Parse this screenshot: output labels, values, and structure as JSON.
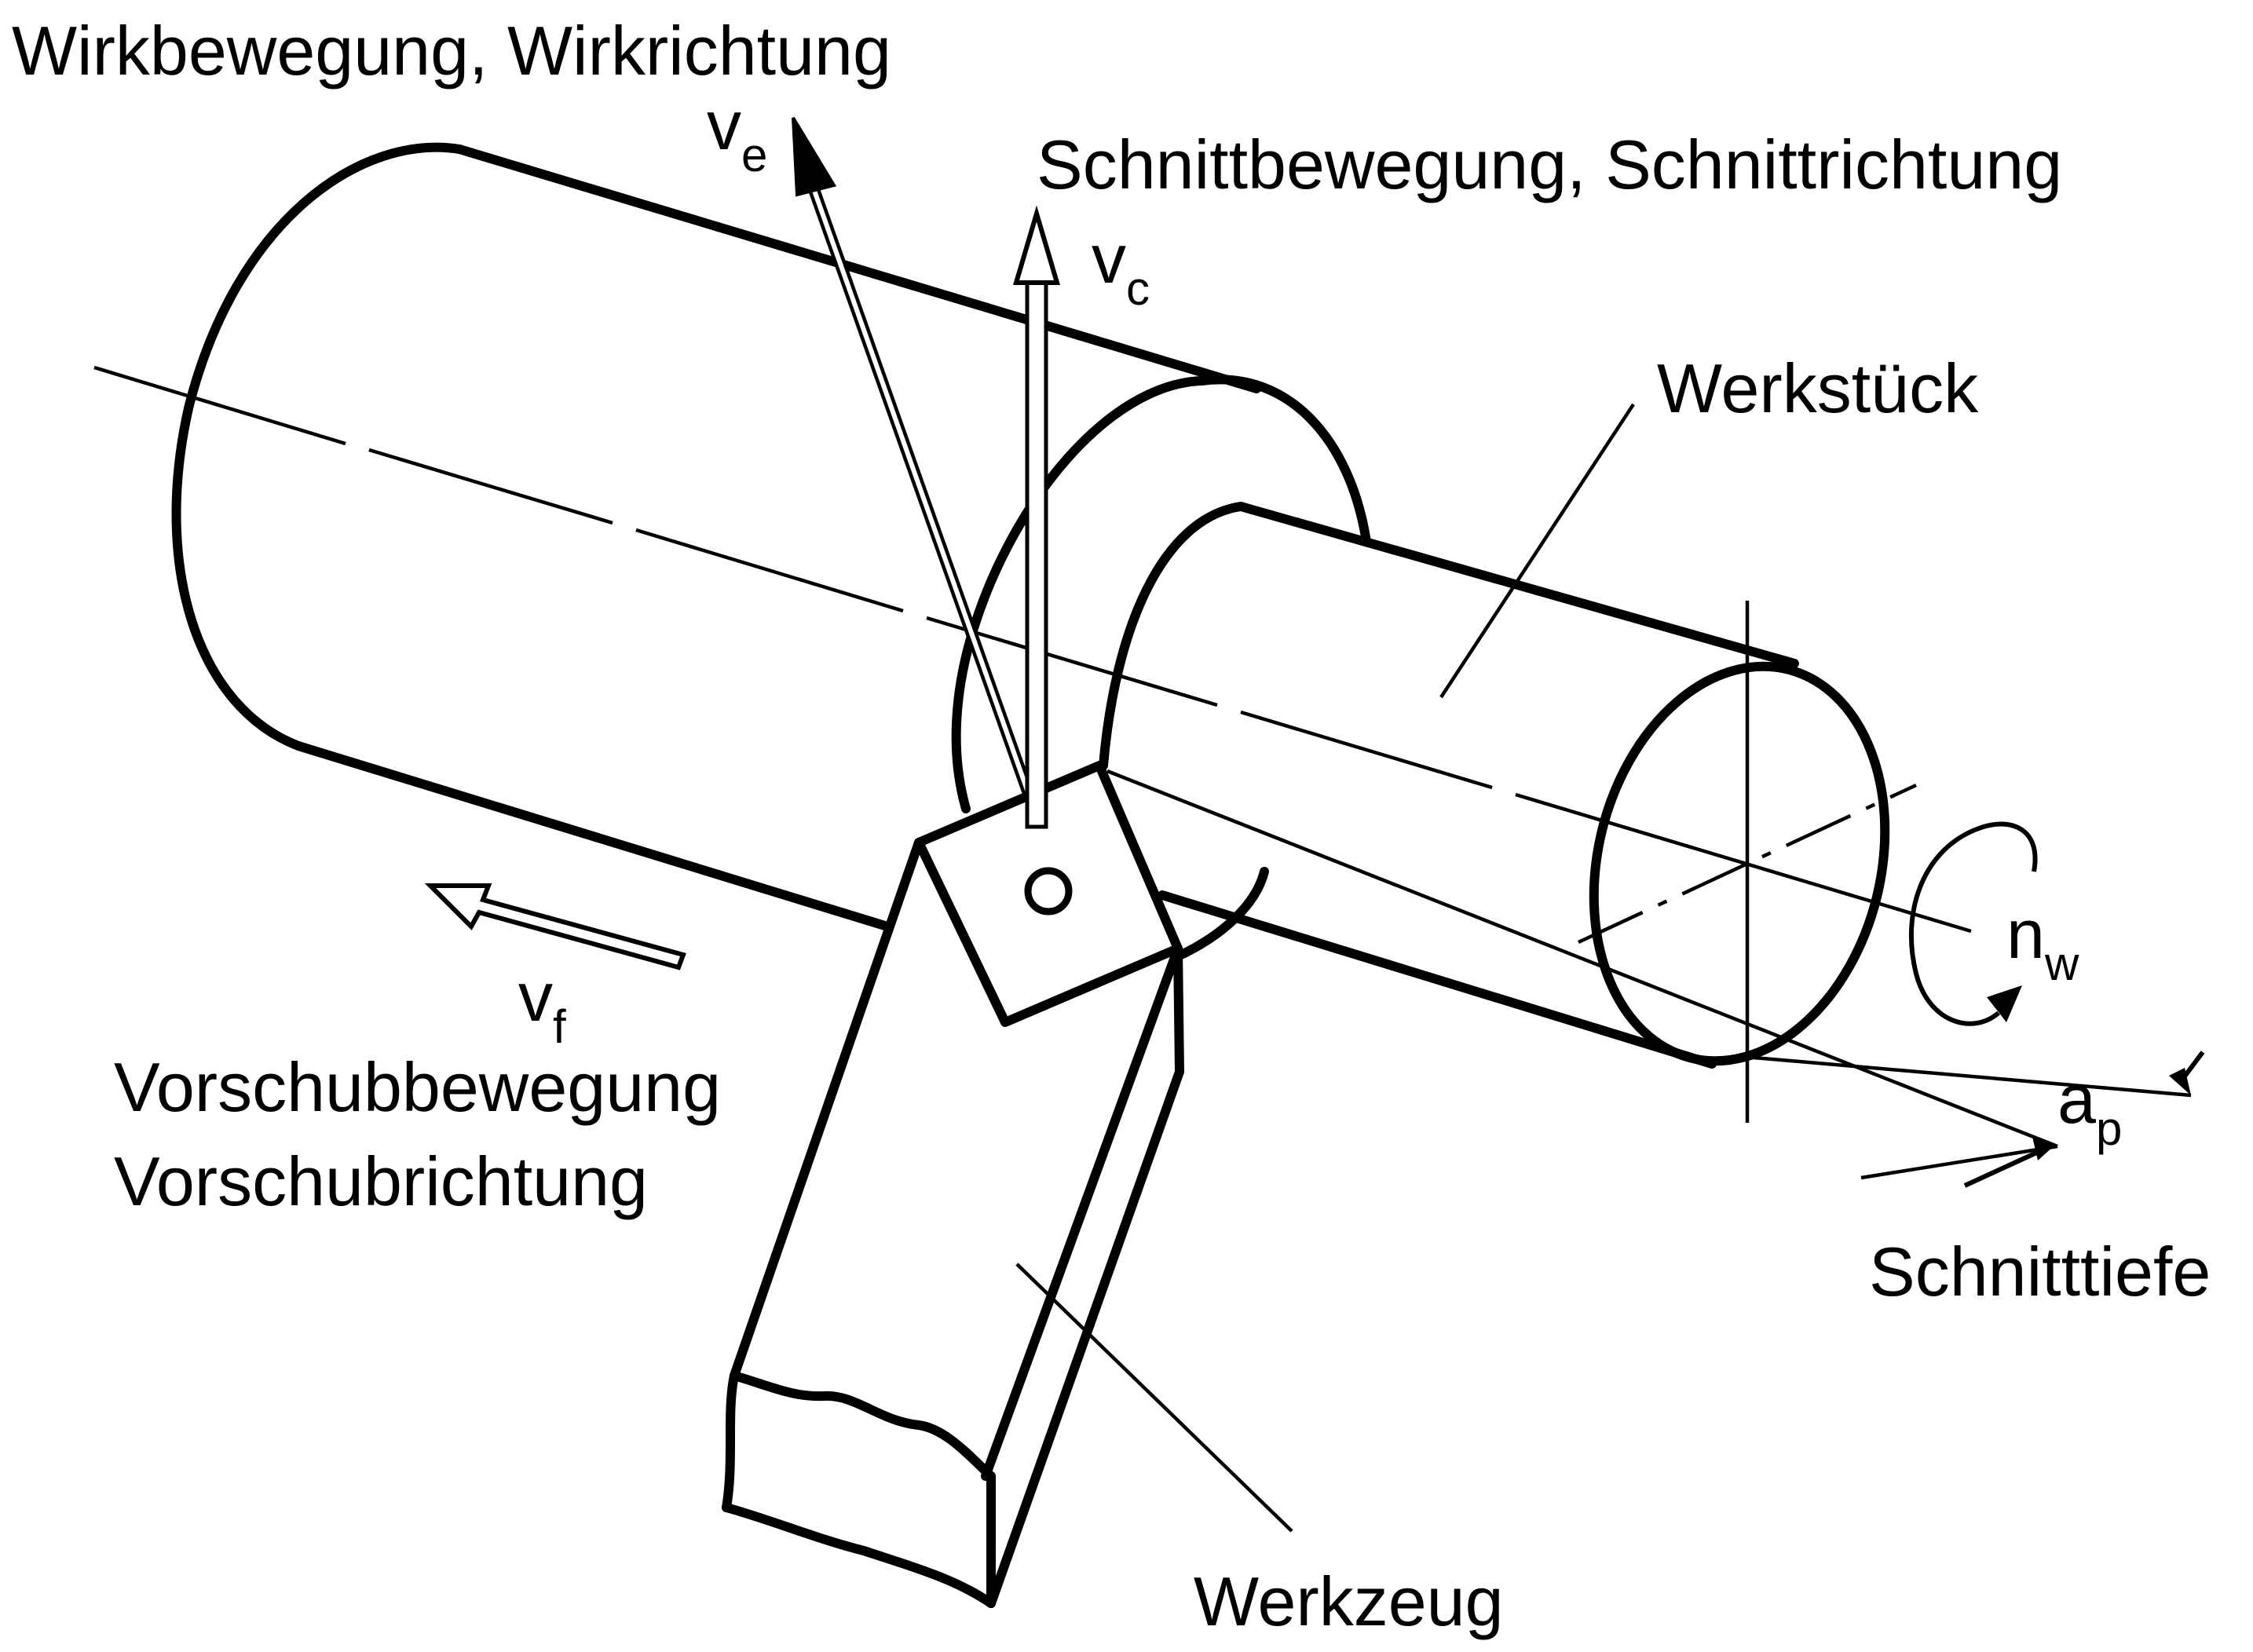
{
  "labels": {
    "wirk": "Wirkbewegung, Wirkrichtung",
    "schnitt": "Schnittbewegung, Schnittrichtung",
    "werkstueck": "Werkstück",
    "vorschub_1": "Vorschubbewegung",
    "vorschub_2": "Vorschubrichtung",
    "schnitttiefe": "Schnitttiefe",
    "werkzeug": "Werkzeug"
  },
  "symbols": {
    "ve": {
      "base": "v",
      "sub": "e"
    },
    "vc": {
      "base": "v",
      "sub": "c"
    },
    "vf": {
      "base": "v",
      "sub": "f"
    },
    "nw": {
      "base": "n",
      "sub": "w"
    },
    "ap": {
      "base": "a",
      "sub": "p"
    }
  }
}
